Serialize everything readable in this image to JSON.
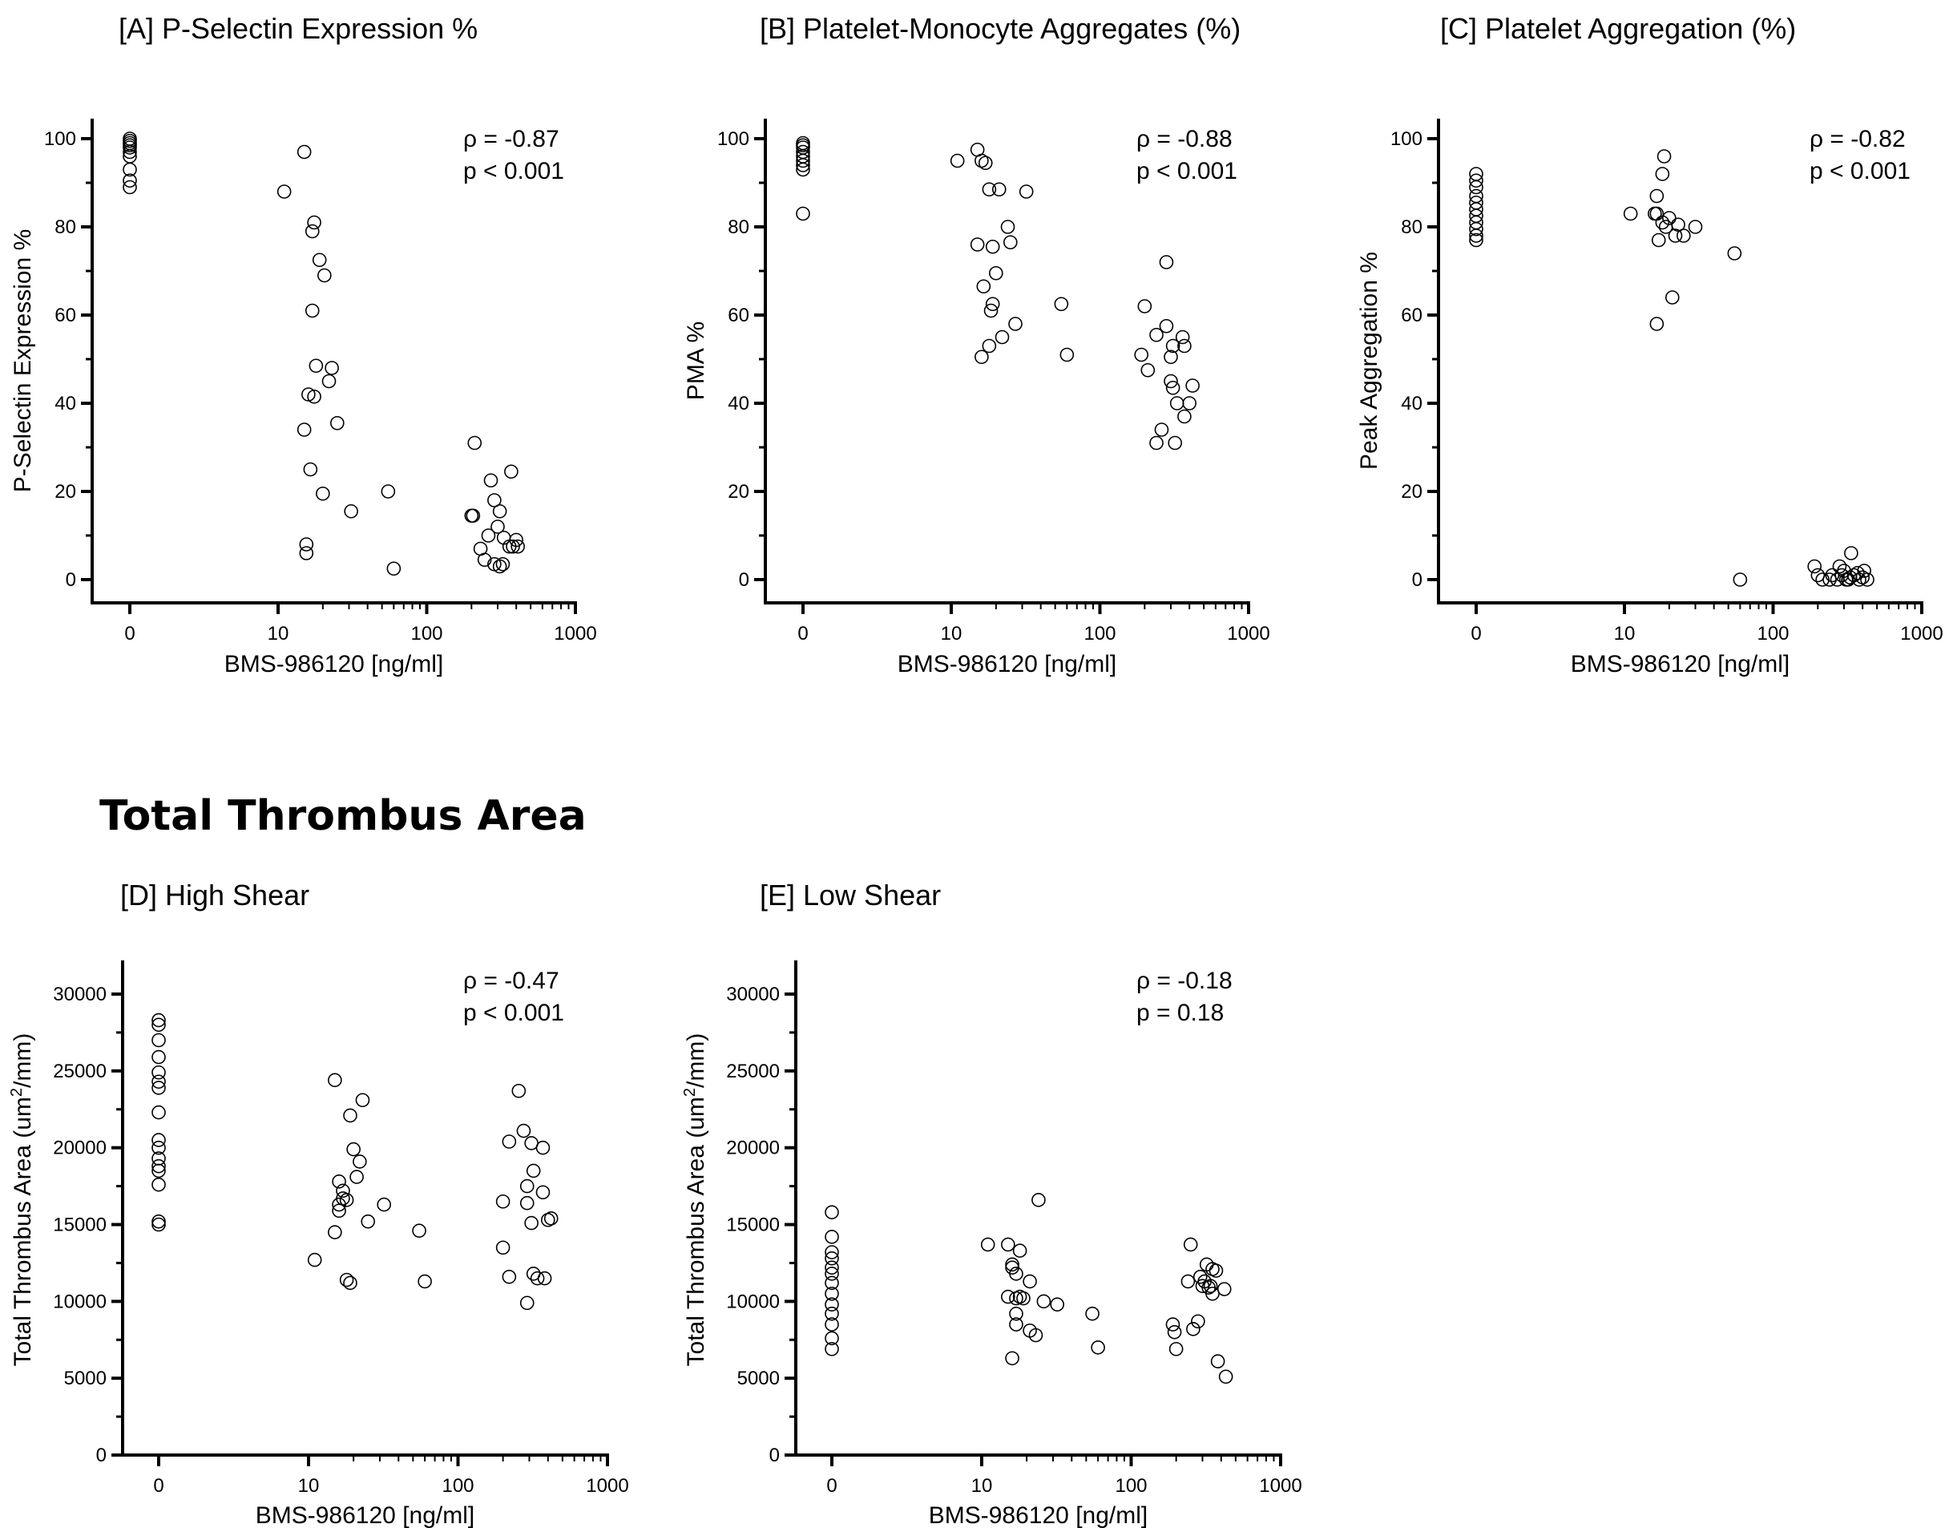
{
  "section_title": "Total Thrombus Area",
  "chart_data": [
    {
      "id": "A",
      "type": "scatter",
      "title": "[A] P-Selectin Expression %",
      "xlabel": "BMS-986120 [ng/ml]",
      "ylabel": "P-Selectin Expression %",
      "xscale": "log-with-zero",
      "xticks": [
        "0",
        "10",
        "100",
        "1000"
      ],
      "ylim": [
        0,
        100
      ],
      "yticks": [
        0,
        20,
        40,
        60,
        80,
        100
      ],
      "rho_label": "ρ = -0.87",
      "p_label": "p < 0.001",
      "points": [
        [
          0,
          100
        ],
        [
          0,
          99.5
        ],
        [
          0,
          99
        ],
        [
          0,
          98.5
        ],
        [
          0,
          98
        ],
        [
          0,
          97
        ],
        [
          0,
          96
        ],
        [
          0,
          93
        ],
        [
          0,
          90.5
        ],
        [
          0,
          89
        ],
        [
          11,
          88
        ],
        [
          15,
          97
        ],
        [
          17,
          79
        ],
        [
          17.5,
          81
        ],
        [
          19,
          72.5
        ],
        [
          20.5,
          69
        ],
        [
          17,
          61
        ],
        [
          18,
          48.5
        ],
        [
          23,
          48
        ],
        [
          22,
          45
        ],
        [
          16,
          42
        ],
        [
          17.5,
          41.5
        ],
        [
          25,
          35.5
        ],
        [
          15,
          34
        ],
        [
          16.5,
          25
        ],
        [
          20,
          19.5
        ],
        [
          31,
          15.5
        ],
        [
          55,
          20
        ],
        [
          15.5,
          8
        ],
        [
          15.5,
          6
        ],
        [
          60,
          2.5
        ],
        [
          210,
          31
        ],
        [
          270,
          22.5
        ],
        [
          285,
          18
        ],
        [
          200,
          14.5
        ],
        [
          205,
          14.5
        ],
        [
          310,
          15.5
        ],
        [
          370,
          24.5
        ],
        [
          300,
          12
        ],
        [
          260,
          10
        ],
        [
          330,
          9.5
        ],
        [
          400,
          9
        ],
        [
          360,
          7.5
        ],
        [
          380,
          7.5
        ],
        [
          410,
          7.5
        ],
        [
          230,
          7
        ],
        [
          245,
          4.5
        ],
        [
          285,
          3.5
        ],
        [
          325,
          3.5
        ],
        [
          310,
          3
        ]
      ],
      "grid": false,
      "legend": "none"
    },
    {
      "id": "B",
      "type": "scatter",
      "title": "[B] Platelet-Monocyte Aggregates (%)",
      "xlabel": "BMS-986120 [ng/ml]",
      "ylabel": "PMA %",
      "xscale": "log-with-zero",
      "xticks": [
        "0",
        "10",
        "100",
        "1000"
      ],
      "ylim": [
        0,
        100
      ],
      "yticks": [
        0,
        20,
        40,
        60,
        80,
        100
      ],
      "rho_label": "ρ = -0.88",
      "p_label": "p < 0.001",
      "points": [
        [
          0,
          99
        ],
        [
          0,
          98.5
        ],
        [
          0,
          98
        ],
        [
          0,
          97
        ],
        [
          0,
          96
        ],
        [
          0,
          95
        ],
        [
          0,
          94
        ],
        [
          0,
          93
        ],
        [
          0,
          83
        ],
        [
          11,
          95
        ],
        [
          15,
          97.5
        ],
        [
          16,
          95
        ],
        [
          17,
          94.5
        ],
        [
          18,
          88.5
        ],
        [
          21,
          88.5
        ],
        [
          32,
          88
        ],
        [
          24,
          80
        ],
        [
          15,
          76
        ],
        [
          19,
          75.5
        ],
        [
          25,
          76.5
        ],
        [
          20,
          69.5
        ],
        [
          16.5,
          66.5
        ],
        [
          19,
          62.5
        ],
        [
          18.5,
          61
        ],
        [
          27,
          58
        ],
        [
          22,
          55
        ],
        [
          18,
          53
        ],
        [
          16,
          50.5
        ],
        [
          55,
          62.5
        ],
        [
          60,
          51
        ],
        [
          200,
          62
        ],
        [
          280,
          72
        ],
        [
          190,
          51
        ],
        [
          240,
          55.5
        ],
        [
          280,
          57.5
        ],
        [
          310,
          53
        ],
        [
          360,
          55
        ],
        [
          370,
          53
        ],
        [
          210,
          47.5
        ],
        [
          300,
          50.5
        ],
        [
          300,
          45
        ],
        [
          310,
          43.5
        ],
        [
          420,
          44
        ],
        [
          330,
          40
        ],
        [
          400,
          40
        ],
        [
          260,
          34
        ],
        [
          370,
          37
        ],
        [
          240,
          31
        ],
        [
          320,
          31
        ]
      ],
      "grid": false,
      "legend": "none"
    },
    {
      "id": "C",
      "type": "scatter",
      "title": "[C] Platelet Aggregation (%)",
      "xlabel": "BMS-986120 [ng/ml]",
      "ylabel": "Peak Aggregation %",
      "xscale": "log-with-zero",
      "xticks": [
        "0",
        "10",
        "100",
        "1000"
      ],
      "ylim": [
        0,
        100
      ],
      "yticks": [
        0,
        20,
        40,
        60,
        80,
        100
      ],
      "rho_label": "ρ = -0.82",
      "p_label": "p < 0.001",
      "points": [
        [
          0,
          92
        ],
        [
          0,
          90.5
        ],
        [
          0,
          89
        ],
        [
          0,
          87
        ],
        [
          0,
          85.5
        ],
        [
          0,
          84
        ],
        [
          0,
          82.5
        ],
        [
          0,
          81
        ],
        [
          0,
          79.5
        ],
        [
          0,
          78
        ],
        [
          0,
          77
        ],
        [
          11,
          83
        ],
        [
          16,
          83
        ],
        [
          16.5,
          83
        ],
        [
          16.5,
          87
        ],
        [
          18,
          92
        ],
        [
          18.5,
          96
        ],
        [
          18,
          81
        ],
        [
          19,
          80
        ],
        [
          20,
          82
        ],
        [
          22,
          78
        ],
        [
          23,
          80.5
        ],
        [
          25,
          78
        ],
        [
          30,
          80
        ],
        [
          17,
          77
        ],
        [
          21,
          64
        ],
        [
          16.5,
          58
        ],
        [
          55,
          74
        ],
        [
          60,
          0
        ],
        [
          190,
          3
        ],
        [
          200,
          1
        ],
        [
          215,
          0
        ],
        [
          240,
          0
        ],
        [
          250,
          1
        ],
        [
          270,
          0
        ],
        [
          280,
          3
        ],
        [
          290,
          1
        ],
        [
          300,
          2
        ],
        [
          310,
          0
        ],
        [
          320,
          0
        ],
        [
          330,
          0.5
        ],
        [
          335,
          6
        ],
        [
          350,
          1
        ],
        [
          370,
          1.5
        ],
        [
          380,
          0
        ],
        [
          400,
          0.5
        ],
        [
          410,
          2
        ],
        [
          430,
          0
        ]
      ],
      "grid": false,
      "legend": "none"
    },
    {
      "id": "D",
      "type": "scatter",
      "title": "[D] High Shear",
      "xlabel": "BMS-986120 [ng/ml]",
      "ylabel": "Total Thrombus Area (um²/mm)",
      "xscale": "log-with-zero",
      "xticks": [
        "0",
        "10",
        "100",
        "1000"
      ],
      "ylim": [
        0,
        32000
      ],
      "yticks": [
        0,
        5000,
        10000,
        15000,
        20000,
        25000,
        30000
      ],
      "rho_label": "ρ = -0.47",
      "p_label": "p < 0.001",
      "points": [
        [
          0,
          28300
        ],
        [
          0,
          28000
        ],
        [
          0,
          27000
        ],
        [
          0,
          25900
        ],
        [
          0,
          24900
        ],
        [
          0,
          24300
        ],
        [
          0,
          23900
        ],
        [
          0,
          22300
        ],
        [
          0,
          20500
        ],
        [
          0,
          20000
        ],
        [
          0,
          19300
        ],
        [
          0,
          18800
        ],
        [
          0,
          18500
        ],
        [
          0,
          17600
        ],
        [
          0,
          15200
        ],
        [
          0,
          15000
        ],
        [
          11,
          12700
        ],
        [
          15,
          24400
        ],
        [
          16,
          17800
        ],
        [
          17,
          17200
        ],
        [
          16,
          16300
        ],
        [
          16,
          15900
        ],
        [
          15,
          14500
        ],
        [
          18,
          16600
        ],
        [
          17,
          16700
        ],
        [
          19,
          22100
        ],
        [
          20,
          19900
        ],
        [
          22,
          19100
        ],
        [
          21,
          18100
        ],
        [
          23,
          23100
        ],
        [
          25,
          15200
        ],
        [
          32,
          16300
        ],
        [
          18,
          11400
        ],
        [
          19,
          11200
        ],
        [
          55,
          14600
        ],
        [
          60,
          11300
        ],
        [
          255,
          23700
        ],
        [
          220,
          20400
        ],
        [
          275,
          21100
        ],
        [
          310,
          20300
        ],
        [
          370,
          20000
        ],
        [
          320,
          18500
        ],
        [
          290,
          17500
        ],
        [
          370,
          17100
        ],
        [
          200,
          16500
        ],
        [
          290,
          16400
        ],
        [
          420,
          15400
        ],
        [
          400,
          15300
        ],
        [
          310,
          15100
        ],
        [
          200,
          13500
        ],
        [
          320,
          11800
        ],
        [
          340,
          11500
        ],
        [
          380,
          11500
        ],
        [
          220,
          11600
        ],
        [
          290,
          9900
        ]
      ],
      "grid": false,
      "legend": "none"
    },
    {
      "id": "E",
      "type": "scatter",
      "title": "[E] Low Shear",
      "xlabel": "BMS-986120 [ng/ml]",
      "ylabel": "Total Thrombus Area (um²/mm)",
      "xscale": "log-with-zero",
      "xticks": [
        "0",
        "10",
        "100",
        "1000"
      ],
      "ylim": [
        0,
        32000
      ],
      "yticks": [
        0,
        5000,
        10000,
        15000,
        20000,
        25000,
        30000
      ],
      "rho_label": "ρ = -0.18",
      "p_label": "p = 0.18",
      "points": [
        [
          0,
          15800
        ],
        [
          0,
          14200
        ],
        [
          0,
          13200
        ],
        [
          0,
          12800
        ],
        [
          0,
          12200
        ],
        [
          0,
          11800
        ],
        [
          0,
          11200
        ],
        [
          0,
          10500
        ],
        [
          0,
          9800
        ],
        [
          0,
          9200
        ],
        [
          0,
          8500
        ],
        [
          0,
          7600
        ],
        [
          0,
          6900
        ],
        [
          11,
          13700
        ],
        [
          15,
          13700
        ],
        [
          18,
          13300
        ],
        [
          16,
          12400
        ],
        [
          16,
          12200
        ],
        [
          17,
          11800
        ],
        [
          21,
          11300
        ],
        [
          24,
          16600
        ],
        [
          15,
          10300
        ],
        [
          17,
          10200
        ],
        [
          18,
          10300
        ],
        [
          19,
          10200
        ],
        [
          26,
          10000
        ],
        [
          32,
          9800
        ],
        [
          17,
          9200
        ],
        [
          17,
          8500
        ],
        [
          21,
          8100
        ],
        [
          23,
          7800
        ],
        [
          16,
          6300
        ],
        [
          55,
          9200
        ],
        [
          60,
          7000
        ],
        [
          250,
          13700
        ],
        [
          320,
          12400
        ],
        [
          350,
          12100
        ],
        [
          370,
          12000
        ],
        [
          290,
          11600
        ],
        [
          310,
          11300
        ],
        [
          240,
          11300
        ],
        [
          300,
          11000
        ],
        [
          340,
          11000
        ],
        [
          330,
          10900
        ],
        [
          420,
          10800
        ],
        [
          350,
          10500
        ],
        [
          190,
          8500
        ],
        [
          280,
          8700
        ],
        [
          260,
          8200
        ],
        [
          195,
          8000
        ],
        [
          200,
          6900
        ],
        [
          380,
          6100
        ],
        [
          430,
          5100
        ]
      ],
      "grid": false,
      "legend": "none"
    }
  ]
}
